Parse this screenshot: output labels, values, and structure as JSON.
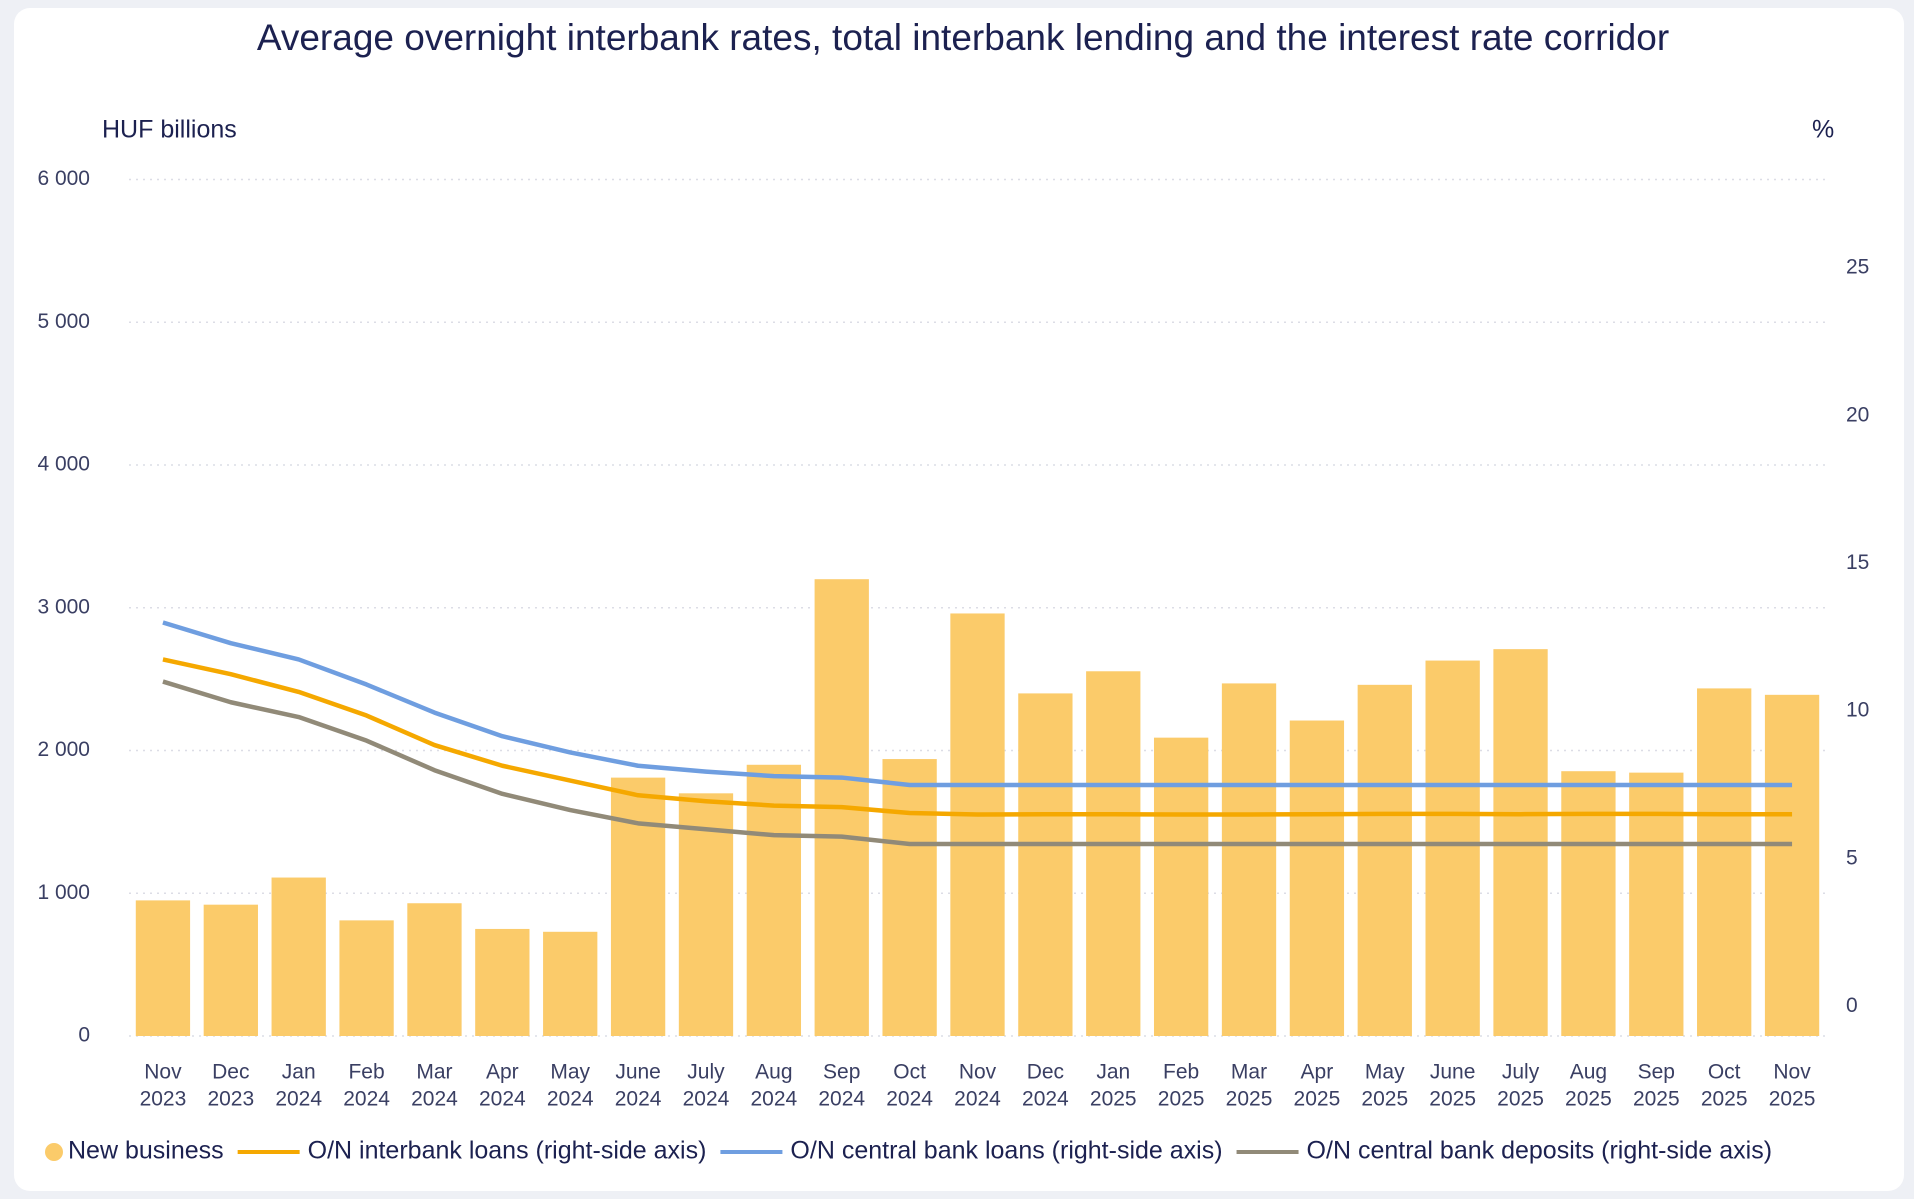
{
  "chart_data": {
    "type": "bar",
    "title": "Average overnight interbank rates, total interbank lending and the interest rate corridor",
    "y_axis_label": "HUF billions",
    "y2_axis_label": "%",
    "categories": [
      [
        "Nov",
        "2023"
      ],
      [
        "Dec",
        "2023"
      ],
      [
        "Jan",
        "2024"
      ],
      [
        "Feb",
        "2024"
      ],
      [
        "Mar",
        "2024"
      ],
      [
        "Apr",
        "2024"
      ],
      [
        "May",
        "2024"
      ],
      [
        "June",
        "2024"
      ],
      [
        "July",
        "2024"
      ],
      [
        "Aug",
        "2024"
      ],
      [
        "Sep",
        "2024"
      ],
      [
        "Oct",
        "2024"
      ],
      [
        "Nov",
        "2024"
      ],
      [
        "Dec",
        "2024"
      ],
      [
        "Jan",
        "2025"
      ],
      [
        "Feb",
        "2025"
      ],
      [
        "Mar",
        "2025"
      ],
      [
        "Apr",
        "2025"
      ],
      [
        "May",
        "2025"
      ],
      [
        "June",
        "2025"
      ],
      [
        "July",
        "2025"
      ],
      [
        "Aug",
        "2025"
      ],
      [
        "Sep",
        "2025"
      ],
      [
        "Oct",
        "2025"
      ],
      [
        "Nov",
        "2025"
      ]
    ],
    "series": [
      {
        "name": "New business",
        "type": "bar",
        "color": "#fbcb6a",
        "values": [
          950,
          920,
          1110,
          810,
          930,
          750,
          730,
          1810,
          1700,
          1900,
          3200,
          1940,
          2960,
          2400,
          2555,
          2090,
          2470,
          2210,
          2460,
          2630,
          2710,
          1855,
          1845,
          2435,
          2390
        ]
      },
      {
        "name": "O/N interbank loans (right-side axis)",
        "type": "line",
        "axis": "y2",
        "color": "#f5a800",
        "values": [
          11.75,
          11.25,
          10.65,
          9.85,
          8.85,
          8.15,
          7.65,
          7.15,
          6.95,
          6.8,
          6.75,
          6.55,
          6.5,
          6.51,
          6.51,
          6.5,
          6.5,
          6.51,
          6.52,
          6.52,
          6.51,
          6.52,
          6.52,
          6.51,
          6.51
        ]
      },
      {
        "name": "O/N central bank loans (right-side axis)",
        "type": "line",
        "axis": "y2",
        "color": "#6f9ee0",
        "values": [
          13.0,
          12.3,
          11.75,
          10.9,
          9.95,
          9.15,
          8.6,
          8.15,
          7.95,
          7.8,
          7.75,
          7.5,
          7.5,
          7.5,
          7.5,
          7.5,
          7.5,
          7.5,
          7.5,
          7.5,
          7.5,
          7.5,
          7.5,
          7.5,
          7.5
        ]
      },
      {
        "name": "O/N central bank deposits (right-side axis)",
        "type": "line",
        "axis": "y2",
        "color": "#918a78",
        "values": [
          11.0,
          10.3,
          9.8,
          9.0,
          8.0,
          7.2,
          6.65,
          6.2,
          6.0,
          5.8,
          5.75,
          5.5,
          5.5,
          5.5,
          5.5,
          5.5,
          5.5,
          5.5,
          5.5,
          5.5,
          5.5,
          5.5,
          5.5,
          5.5,
          5.5
        ]
      }
    ],
    "ylim": [
      0,
      6000
    ],
    "yticks": [
      0,
      {
        "value": 1000,
        "label": "1 000"
      },
      {
        "value": 2000,
        "label": "2 000"
      },
      {
        "value": 3000,
        "label": "3 000"
      },
      {
        "value": 4000,
        "label": "4 000"
      },
      {
        "value": 5000,
        "label": "5 000"
      },
      {
        "value": 6000,
        "label": "6 000"
      }
    ],
    "y2lim": [
      -1,
      28
    ],
    "y2ticks": [
      0,
      5,
      10,
      15,
      20,
      25
    ],
    "grid": true,
    "legend": "bottom"
  }
}
